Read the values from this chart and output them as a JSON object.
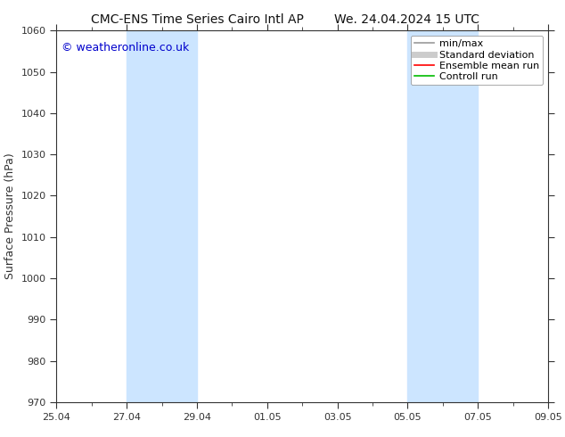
{
  "title_left": "CMC-ENS Time Series Cairo Intl AP",
  "title_right": "We. 24.04.2024 15 UTC",
  "ylabel": "Surface Pressure (hPa)",
  "ylim": [
    970,
    1060
  ],
  "yticks": [
    970,
    980,
    990,
    1000,
    1010,
    1020,
    1030,
    1040,
    1050,
    1060
  ],
  "xtick_labels": [
    "25.04",
    "27.04",
    "29.04",
    "01.05",
    "03.05",
    "05.05",
    "07.05",
    "09.05"
  ],
  "xtick_days_offset": [
    0,
    2,
    4,
    6,
    8,
    10,
    12,
    14
  ],
  "x_start_day": 0,
  "x_end_day": 14,
  "watermark": "© weatheronline.co.uk",
  "watermark_color": "#0000cc",
  "shaded_bands": [
    {
      "x_start": 2,
      "x_end": 4,
      "color": "#cce5ff"
    },
    {
      "x_start": 10,
      "x_end": 12,
      "color": "#cce5ff"
    }
  ],
  "legend_items": [
    {
      "label": "min/max",
      "color": "#999999",
      "lw": 1.2
    },
    {
      "label": "Standard deviation",
      "color": "#cccccc",
      "lw": 5
    },
    {
      "label": "Ensemble mean run",
      "color": "#ff0000",
      "lw": 1.2
    },
    {
      "label": "Controll run",
      "color": "#00bb00",
      "lw": 1.2
    }
  ],
  "fig_bg_color": "#ffffff",
  "plot_bg_color": "#ffffff",
  "title_fontsize": 10,
  "axis_fontsize": 8,
  "ylabel_fontsize": 9,
  "watermark_fontsize": 9,
  "legend_fontsize": 8,
  "spine_color": "#333333",
  "tick_color": "#333333"
}
